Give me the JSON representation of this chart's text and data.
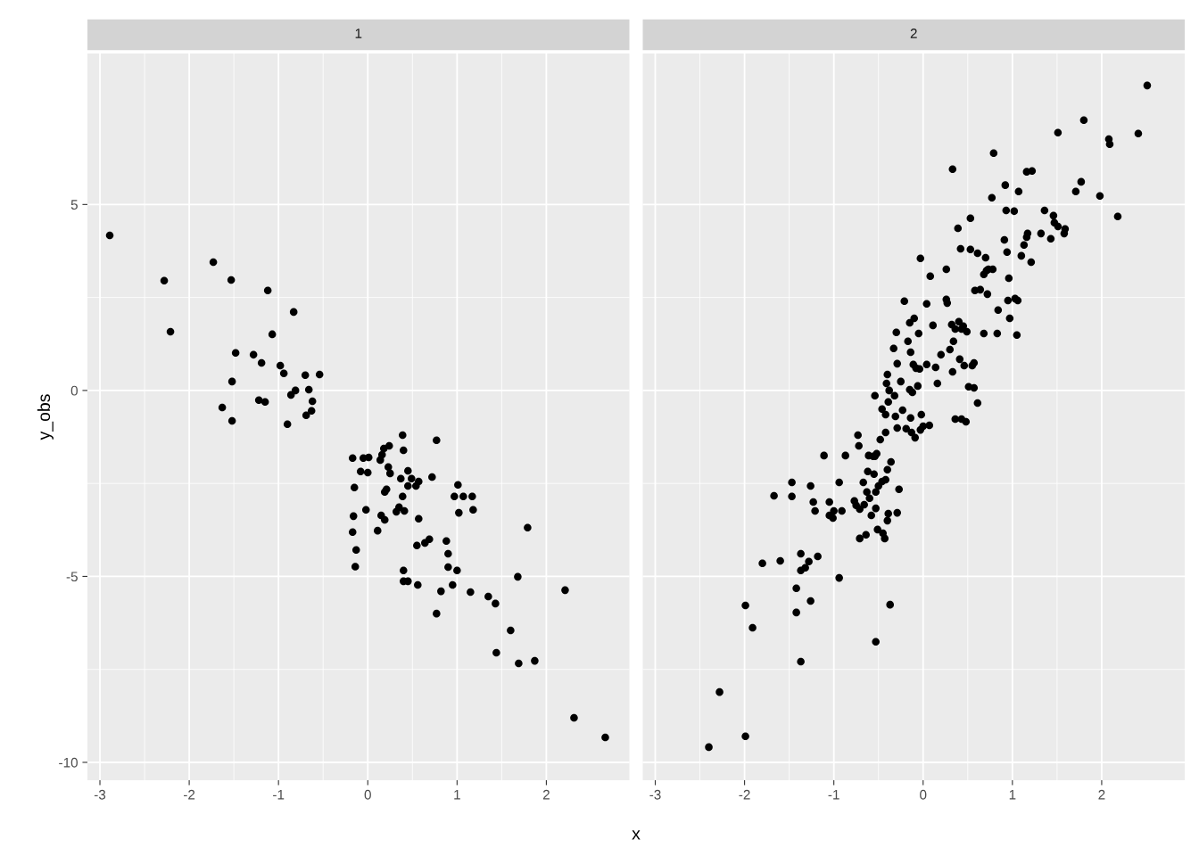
{
  "chart_data": [
    {
      "type": "scatter",
      "title": "1",
      "xlabel": "x",
      "ylabel": "y_obs",
      "xlim": [
        -3.14,
        2.93
      ],
      "ylim": [
        -10.48,
        9.06
      ],
      "xticks": [
        -3,
        -2,
        -1,
        0,
        1,
        2
      ],
      "yticks": [
        -10,
        -5,
        0,
        5
      ],
      "grid": true,
      "marker": "circle",
      "series": [
        {
          "color": "#000000",
          "x": [
            -2.89,
            -2.28,
            -2.21,
            -1.73,
            -1.53,
            -1.48,
            -1.52,
            -1.63,
            -1.52,
            -1.12,
            -1.07,
            -1.28,
            -1.19,
            -1.22,
            -1.15,
            -0.98,
            -0.94,
            -0.83,
            -0.9,
            -0.86,
            -0.81,
            -0.7,
            -0.66,
            -0.69,
            -0.63,
            -0.62,
            -0.54,
            -0.17,
            -0.15,
            -0.16,
            -0.17,
            -0.13,
            -0.14,
            -0.08,
            -0.05,
            0.01,
            0.0,
            -0.02,
            0.11,
            0.14,
            0.16,
            0.15,
            0.19,
            0.19,
            0.18,
            0.24,
            0.23,
            0.21,
            0.25,
            0.32,
            0.35,
            0.39,
            0.4,
            0.37,
            0.39,
            0.41,
            0.4,
            0.4,
            0.45,
            0.45,
            0.49,
            0.45,
            0.54,
            0.57,
            0.57,
            0.55,
            0.56,
            0.64,
            0.69,
            0.72,
            0.77,
            0.77,
            0.82,
            0.88,
            0.9,
            0.9,
            0.95,
            1.0,
            0.97,
            1.01,
            1.02,
            1.07,
            1.17,
            1.18,
            1.15,
            1.35,
            1.43,
            1.44,
            1.6,
            1.69,
            1.68,
            1.79,
            1.87,
            2.21,
            2.31,
            2.66
          ],
          "values": [
            4.17,
            2.95,
            1.58,
            3.45,
            2.97,
            1.01,
            0.24,
            -0.46,
            -0.82,
            2.69,
            1.51,
            0.96,
            0.74,
            -0.26,
            -0.31,
            0.67,
            0.46,
            2.11,
            -0.91,
            -0.12,
            0.0,
            0.41,
            0.02,
            -0.67,
            -0.55,
            -0.29,
            0.43,
            -1.82,
            -2.61,
            -3.38,
            -3.81,
            -4.29,
            -4.74,
            -2.18,
            -1.82,
            -1.8,
            -2.21,
            -3.21,
            -3.77,
            -1.87,
            -1.73,
            -3.36,
            -2.73,
            -3.48,
            -1.56,
            -1.49,
            -2.06,
            -2.66,
            -2.23,
            -3.26,
            -3.14,
            -1.2,
            -1.61,
            -2.37,
            -2.85,
            -3.24,
            -4.84,
            -5.13,
            -5.13,
            -2.16,
            -2.37,
            -2.57,
            -2.57,
            -2.45,
            -3.45,
            -4.17,
            -5.23,
            -4.1,
            -4.0,
            -2.33,
            -1.34,
            -6.0,
            -5.4,
            -4.05,
            -4.39,
            -4.75,
            -5.23,
            -4.84,
            -2.85,
            -2.54,
            -3.29,
            -2.85,
            -2.85,
            -3.21,
            -5.42,
            -5.54,
            -5.73,
            -7.05,
            -6.45,
            -7.34,
            -5.01,
            -3.69,
            -7.27,
            -5.37,
            -8.8,
            -9.33
          ]
        }
      ]
    },
    {
      "type": "scatter",
      "title": "2",
      "xlim": [
        -3.14,
        2.93
      ],
      "ylim": [
        -10.48,
        9.06
      ],
      "xticks": [
        -3,
        -2,
        -1,
        0,
        1,
        2
      ],
      "yticks": [
        -10,
        -5,
        0,
        5
      ],
      "tick_labels": "x",
      "grid": true,
      "marker": "circle",
      "series": [
        {
          "color": "#000000",
          "x": [
            -2.4,
            -2.28,
            -1.99,
            -1.99,
            -1.91,
            -1.8,
            -1.67,
            -1.6,
            -1.47,
            -1.47,
            -1.42,
            -1.42,
            -1.37,
            -1.37,
            -1.37,
            -1.32,
            -1.28,
            -1.26,
            -1.26,
            -1.23,
            -1.21,
            -1.18,
            -1.11,
            -1.05,
            -1.05,
            -1.01,
            -1.0,
            -0.94,
            -0.94,
            -0.91,
            -0.87,
            -0.77,
            -0.75,
            -0.73,
            -0.72,
            -0.71,
            -0.71,
            -0.67,
            -0.66,
            -0.64,
            -0.63,
            -0.62,
            -0.61,
            -0.6,
            -0.58,
            -0.56,
            -0.55,
            -0.54,
            -0.53,
            -0.53,
            -0.52,
            -0.51,
            -0.48,
            -0.53,
            -0.5,
            -0.46,
            -0.45,
            -0.43,
            -0.42,
            -0.4,
            -0.4,
            -0.39,
            -0.37,
            -0.54,
            -0.46,
            -0.42,
            -0.42,
            -0.41,
            -0.4,
            -0.38,
            -0.39,
            -0.36,
            -0.33,
            -0.3,
            -0.32,
            -0.31,
            -0.29,
            -0.29,
            -0.27,
            -0.29,
            -0.25,
            -0.23,
            -0.21,
            -0.19,
            -0.17,
            -0.15,
            -0.14,
            -0.15,
            -0.14,
            -0.13,
            -0.12,
            -0.11,
            -0.1,
            -0.09,
            -0.08,
            -0.06,
            -0.05,
            -0.04,
            -0.03,
            -0.02,
            -0.03,
            0.0,
            0.04,
            0.04,
            0.07,
            0.08,
            0.11,
            0.14,
            0.16,
            0.2,
            0.26,
            0.26,
            0.27,
            0.3,
            0.32,
            0.33,
            0.34,
            0.33,
            0.36,
            0.36,
            0.39,
            0.4,
            0.41,
            0.42,
            0.43,
            0.43,
            0.45,
            0.48,
            0.46,
            0.49,
            0.51,
            0.53,
            0.53,
            0.55,
            0.57,
            0.57,
            0.58,
            0.61,
            0.61,
            0.64,
            0.7,
            0.68,
            0.73,
            0.72,
            0.68,
            0.71,
            0.78,
            0.77,
            0.79,
            0.84,
            0.83,
            0.91,
            0.92,
            0.93,
            0.94,
            0.95,
            0.96,
            0.97,
            1.02,
            1.03,
            1.05,
            1.07,
            1.06,
            1.1,
            1.13,
            1.16,
            1.16,
            1.17,
            1.22,
            1.21,
            1.32,
            1.36,
            1.43,
            1.46,
            1.47,
            1.51,
            1.51,
            1.58,
            1.59,
            1.71,
            1.77,
            1.8,
            1.98,
            2.08,
            2.09,
            2.18,
            2.41,
            2.51
          ],
          "values": [
            -9.59,
            -8.11,
            -9.3,
            -5.78,
            -6.38,
            -4.65,
            -2.83,
            -4.58,
            -2.47,
            -2.85,
            -5.32,
            -5.97,
            -4.39,
            -4.84,
            -7.29,
            -4.77,
            -4.6,
            -2.57,
            -5.66,
            -3.0,
            -3.24,
            -4.46,
            -1.75,
            -3.0,
            -3.36,
            -3.43,
            -3.24,
            -2.47,
            -5.04,
            -3.24,
            -1.75,
            -2.97,
            -3.09,
            -1.2,
            -1.49,
            -3.98,
            -3.19,
            -2.47,
            -3.07,
            -3.88,
            -2.73,
            -2.18,
            -1.75,
            -2.9,
            -3.36,
            -1.77,
            -2.25,
            -1.77,
            -3.17,
            -2.73,
            -1.7,
            -3.74,
            -1.32,
            -6.76,
            -2.57,
            -2.45,
            -3.84,
            -3.98,
            -2.4,
            -2.13,
            -3.5,
            -3.31,
            -5.76,
            -0.14,
            -0.5,
            -0.65,
            -1.13,
            0.19,
            0.43,
            0.0,
            -0.31,
            -1.92,
            1.13,
            1.56,
            -0.14,
            -0.7,
            0.72,
            -1.01,
            -2.66,
            -3.29,
            0.24,
            -0.53,
            2.4,
            -1.03,
            1.32,
            1.82,
            1.03,
            0.02,
            -0.74,
            -1.13,
            -0.05,
            0.7,
            1.94,
            -1.27,
            0.6,
            0.12,
            1.53,
            0.58,
            3.55,
            -0.65,
            -1.06,
            -0.96,
            2.33,
            0.7,
            -0.94,
            3.07,
            1.75,
            0.62,
            0.19,
            0.96,
            3.26,
            2.45,
            2.35,
            1.1,
            1.77,
            5.95,
            1.32,
            0.5,
            1.65,
            -0.77,
            4.36,
            1.85,
            0.84,
            3.81,
            1.65,
            -0.77,
            1.73,
            -0.84,
            0.67,
            1.58,
            0.1,
            4.63,
            3.79,
            0.67,
            0.07,
            0.74,
            2.69,
            -0.34,
            3.69,
            2.71,
            3.57,
            3.12,
            3.26,
            2.59,
            1.53,
            3.22,
            3.26,
            5.18,
            6.38,
            2.16,
            1.53,
            4.05,
            5.52,
            4.84,
            3.72,
            2.42,
            3.02,
            1.94,
            4.82,
            2.47,
            1.49,
            5.35,
            2.42,
            3.62,
            3.91,
            4.12,
            5.88,
            4.22,
            5.9,
            3.45,
            4.22,
            4.84,
            4.08,
            4.7,
            4.51,
            6.93,
            4.41,
            4.22,
            4.34,
            5.35,
            5.61,
            7.27,
            5.23,
            6.76,
            6.62,
            4.68,
            6.91,
            8.2
          ]
        }
      ]
    }
  ]
}
